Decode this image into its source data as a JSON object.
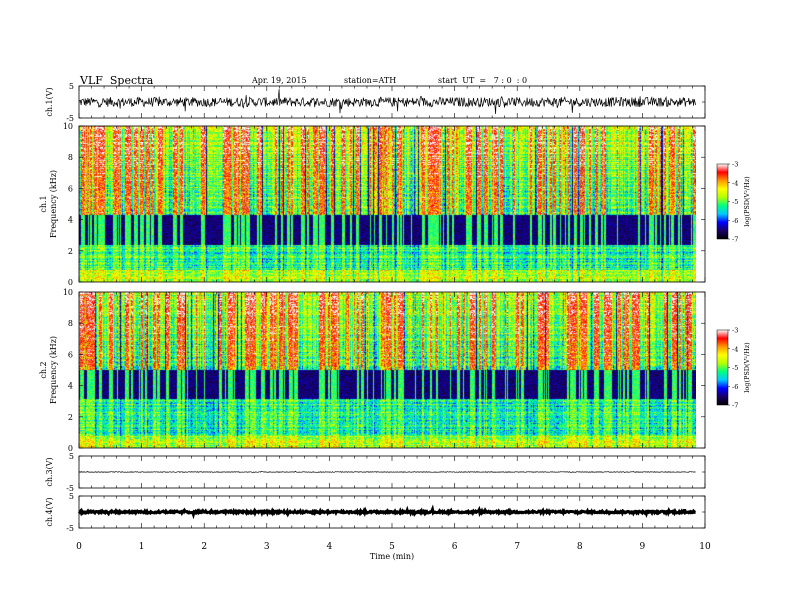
{
  "header": {
    "title": "VLF  Spectra",
    "date": "Apr. 19, 2015",
    "station": "station=ATH",
    "start_ut": "start  UT  =   7 : 0  : 0"
  },
  "colors": {
    "colormap": [
      "#000000",
      "#1a0066",
      "#0000ff",
      "#00c8ff",
      "#00ff80",
      "#b4ff00",
      "#ffff00",
      "#ff9600",
      "#ff0000",
      "#ffffff"
    ],
    "trace": "#000000"
  },
  "chart_data": [
    {
      "type": "line",
      "name": "ch1-waveform",
      "ylabel": "ch.1(V)",
      "ylim": [
        -5,
        5
      ],
      "yticks": [
        "5",
        "-5"
      ],
      "xlim": [
        0,
        10
      ],
      "data_end_min": 9.85,
      "baseline_v": 0.0,
      "noise_amplitude_v": 1.5
    },
    {
      "type": "heatmap",
      "name": "ch1-spectrogram",
      "ylabel_channel": "ch.1",
      "ylabel": "Frequency  (kHz)",
      "ylim": [
        0,
        10
      ],
      "yticks": [
        "0",
        "2",
        "4",
        "6",
        "8",
        "10"
      ],
      "xlim": [
        0,
        10
      ],
      "color_range": [
        -7,
        -3
      ],
      "colorbar_label": "log(PSD(V²/Hz)",
      "colorbar_ticks": [
        "-3",
        "-4",
        "-5",
        "-6",
        "-7"
      ],
      "dark_band_khz": [
        2.4,
        4.3
      ]
    },
    {
      "type": "heatmap",
      "name": "ch2-spectrogram",
      "ylabel_channel": "ch.2",
      "ylabel": "Frequency  (kHz)",
      "ylim": [
        0,
        10
      ],
      "yticks": [
        "0",
        "2",
        "4",
        "6",
        "8",
        "10"
      ],
      "xlim": [
        0,
        10
      ],
      "color_range": [
        -7,
        -3
      ],
      "colorbar_label": "log(PSD(V²/Hz)",
      "colorbar_ticks": [
        "-3",
        "-4",
        "-5",
        "-6",
        "-7"
      ],
      "dark_band_khz": [
        3.2,
        5.0
      ]
    },
    {
      "type": "line",
      "name": "ch3-waveform",
      "ylabel": "ch.3(V)",
      "ylim": [
        -5,
        5
      ],
      "yticks": [
        "5",
        "-5"
      ],
      "xlim": [
        0,
        10
      ],
      "data_end_min": 9.85,
      "baseline_v": 0.0,
      "noise_amplitude_v": 0.1
    },
    {
      "type": "line",
      "name": "ch4-waveform",
      "ylabel": "ch.4(V)",
      "ylim": [
        -5,
        5
      ],
      "yticks": [
        "5",
        "-5"
      ],
      "xlim": [
        0,
        10
      ],
      "data_end_min": 9.85,
      "baseline_v": 0.0,
      "noise_amplitude_v": 0.3
    }
  ],
  "x_axis": {
    "label": "Time  (min)",
    "ticks": [
      "0",
      "1",
      "2",
      "3",
      "4",
      "5",
      "6",
      "7",
      "8",
      "9",
      "10"
    ]
  }
}
